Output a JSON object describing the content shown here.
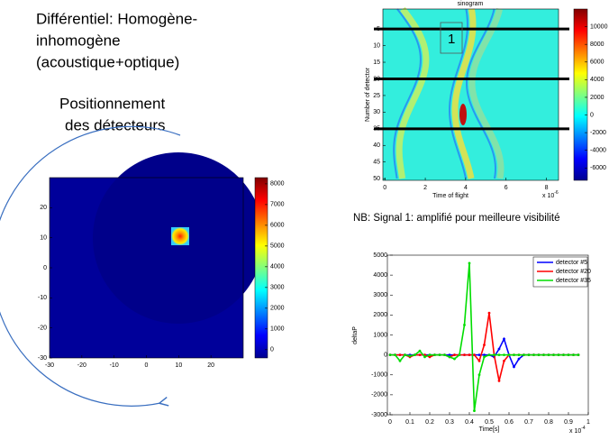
{
  "texts": {
    "title_lines": [
      "Différentiel: Homogène-",
      "inhomogène",
      "(acoustique+optique)"
    ],
    "subtitle_lines": [
      "Positionnement",
      "des détecteurs"
    ],
    "note": "NB: Signal 1: amplifié pour meilleure visibilité"
  },
  "chart_data": [
    {
      "type": "heatmap",
      "xlim": [
        -30,
        30
      ],
      "ylim": [
        -30,
        30
      ],
      "xticks": [
        -30,
        -20,
        -10,
        0,
        10,
        20
      ],
      "yticks": [
        -30,
        -20,
        -10,
        0,
        10,
        20
      ],
      "clim": [
        -400,
        8300
      ],
      "cticks": [
        0,
        1000,
        2000,
        3000,
        4000,
        5000,
        6000,
        7000,
        8000
      ]
    },
    {
      "type": "heatmap",
      "title": "sinogram",
      "xlabel": "Time of flight",
      "ylabel": "Number of detector",
      "x_scale_label": {
        "base": "x 10",
        "exponent": "-6"
      },
      "xlim": [
        -0.1,
        8.6
      ],
      "ylim": [
        -1,
        50.5
      ],
      "y_reversed": true,
      "xticks": [
        0,
        2,
        4,
        6,
        8
      ],
      "yticks": [
        5,
        10,
        15,
        20,
        25,
        30,
        35,
        40,
        45,
        50
      ],
      "clim": [
        -7400,
        12000
      ],
      "cticks": [
        -6000,
        -4000,
        -2000,
        0,
        2000,
        4000,
        6000,
        8000,
        10000
      ],
      "marked_detectors": [
        5,
        20,
        35
      ],
      "annotation": "1"
    },
    {
      "type": "line",
      "xlabel": "Time[s]",
      "ylabel": "deltaP",
      "x_scale_label": {
        "base": "x 10",
        "exponent": "-4"
      },
      "xlim": [
        0,
        1
      ],
      "ylim": [
        -3000,
        5000
      ],
      "xticks": [
        0,
        0.1,
        0.2,
        0.3,
        0.4,
        0.5,
        0.6,
        0.7,
        0.8,
        0.9,
        1
      ],
      "yticks": [
        -3000,
        -2000,
        -1000,
        0,
        1000,
        2000,
        3000,
        4000,
        5000
      ],
      "legend": "northeast",
      "x": [
        0,
        0.025,
        0.05,
        0.075,
        0.1,
        0.125,
        0.15,
        0.175,
        0.2,
        0.225,
        0.25,
        0.275,
        0.3,
        0.325,
        0.35,
        0.375,
        0.4,
        0.425,
        0.45,
        0.475,
        0.5,
        0.525,
        0.55,
        0.575,
        0.6,
        0.625,
        0.65,
        0.675,
        0.7,
        0.725,
        0.75,
        0.775,
        0.8,
        0.825,
        0.85,
        0.875,
        0.9,
        0.925,
        0.95
      ],
      "series": [
        {
          "name": "detector #5",
          "color": "#0000ff",
          "values": [
            0,
            0,
            0,
            0,
            0,
            0,
            0,
            0,
            0,
            0,
            0,
            0,
            0,
            0,
            0,
            0,
            0,
            0,
            0,
            0,
            0,
            -100,
            300,
            800,
            0,
            -600,
            -200,
            0,
            0,
            0,
            0,
            0,
            0,
            0,
            0,
            0,
            0,
            0,
            0
          ]
        },
        {
          "name": "detector #20",
          "color": "#ff0000",
          "values": [
            0,
            0,
            0,
            0,
            -100,
            0,
            0,
            0,
            -100,
            0,
            0,
            0,
            -100,
            0,
            0,
            0,
            0,
            0,
            -300,
            500,
            2100,
            0,
            -1300,
            -300,
            0,
            0,
            0,
            0,
            0,
            0,
            0,
            0,
            0,
            0,
            0,
            0,
            0,
            0,
            0
          ]
        },
        {
          "name": "detector #35",
          "color": "#00dd00",
          "values": [
            0,
            0,
            -300,
            0,
            -50,
            0,
            200,
            -100,
            0,
            0,
            0,
            0,
            -100,
            -200,
            0,
            1500,
            4600,
            -2800,
            -1000,
            -100,
            0,
            0,
            0,
            0,
            0,
            0,
            0,
            0,
            0,
            0,
            0,
            0,
            0,
            0,
            0,
            0,
            0,
            0,
            0
          ]
        }
      ]
    }
  ]
}
